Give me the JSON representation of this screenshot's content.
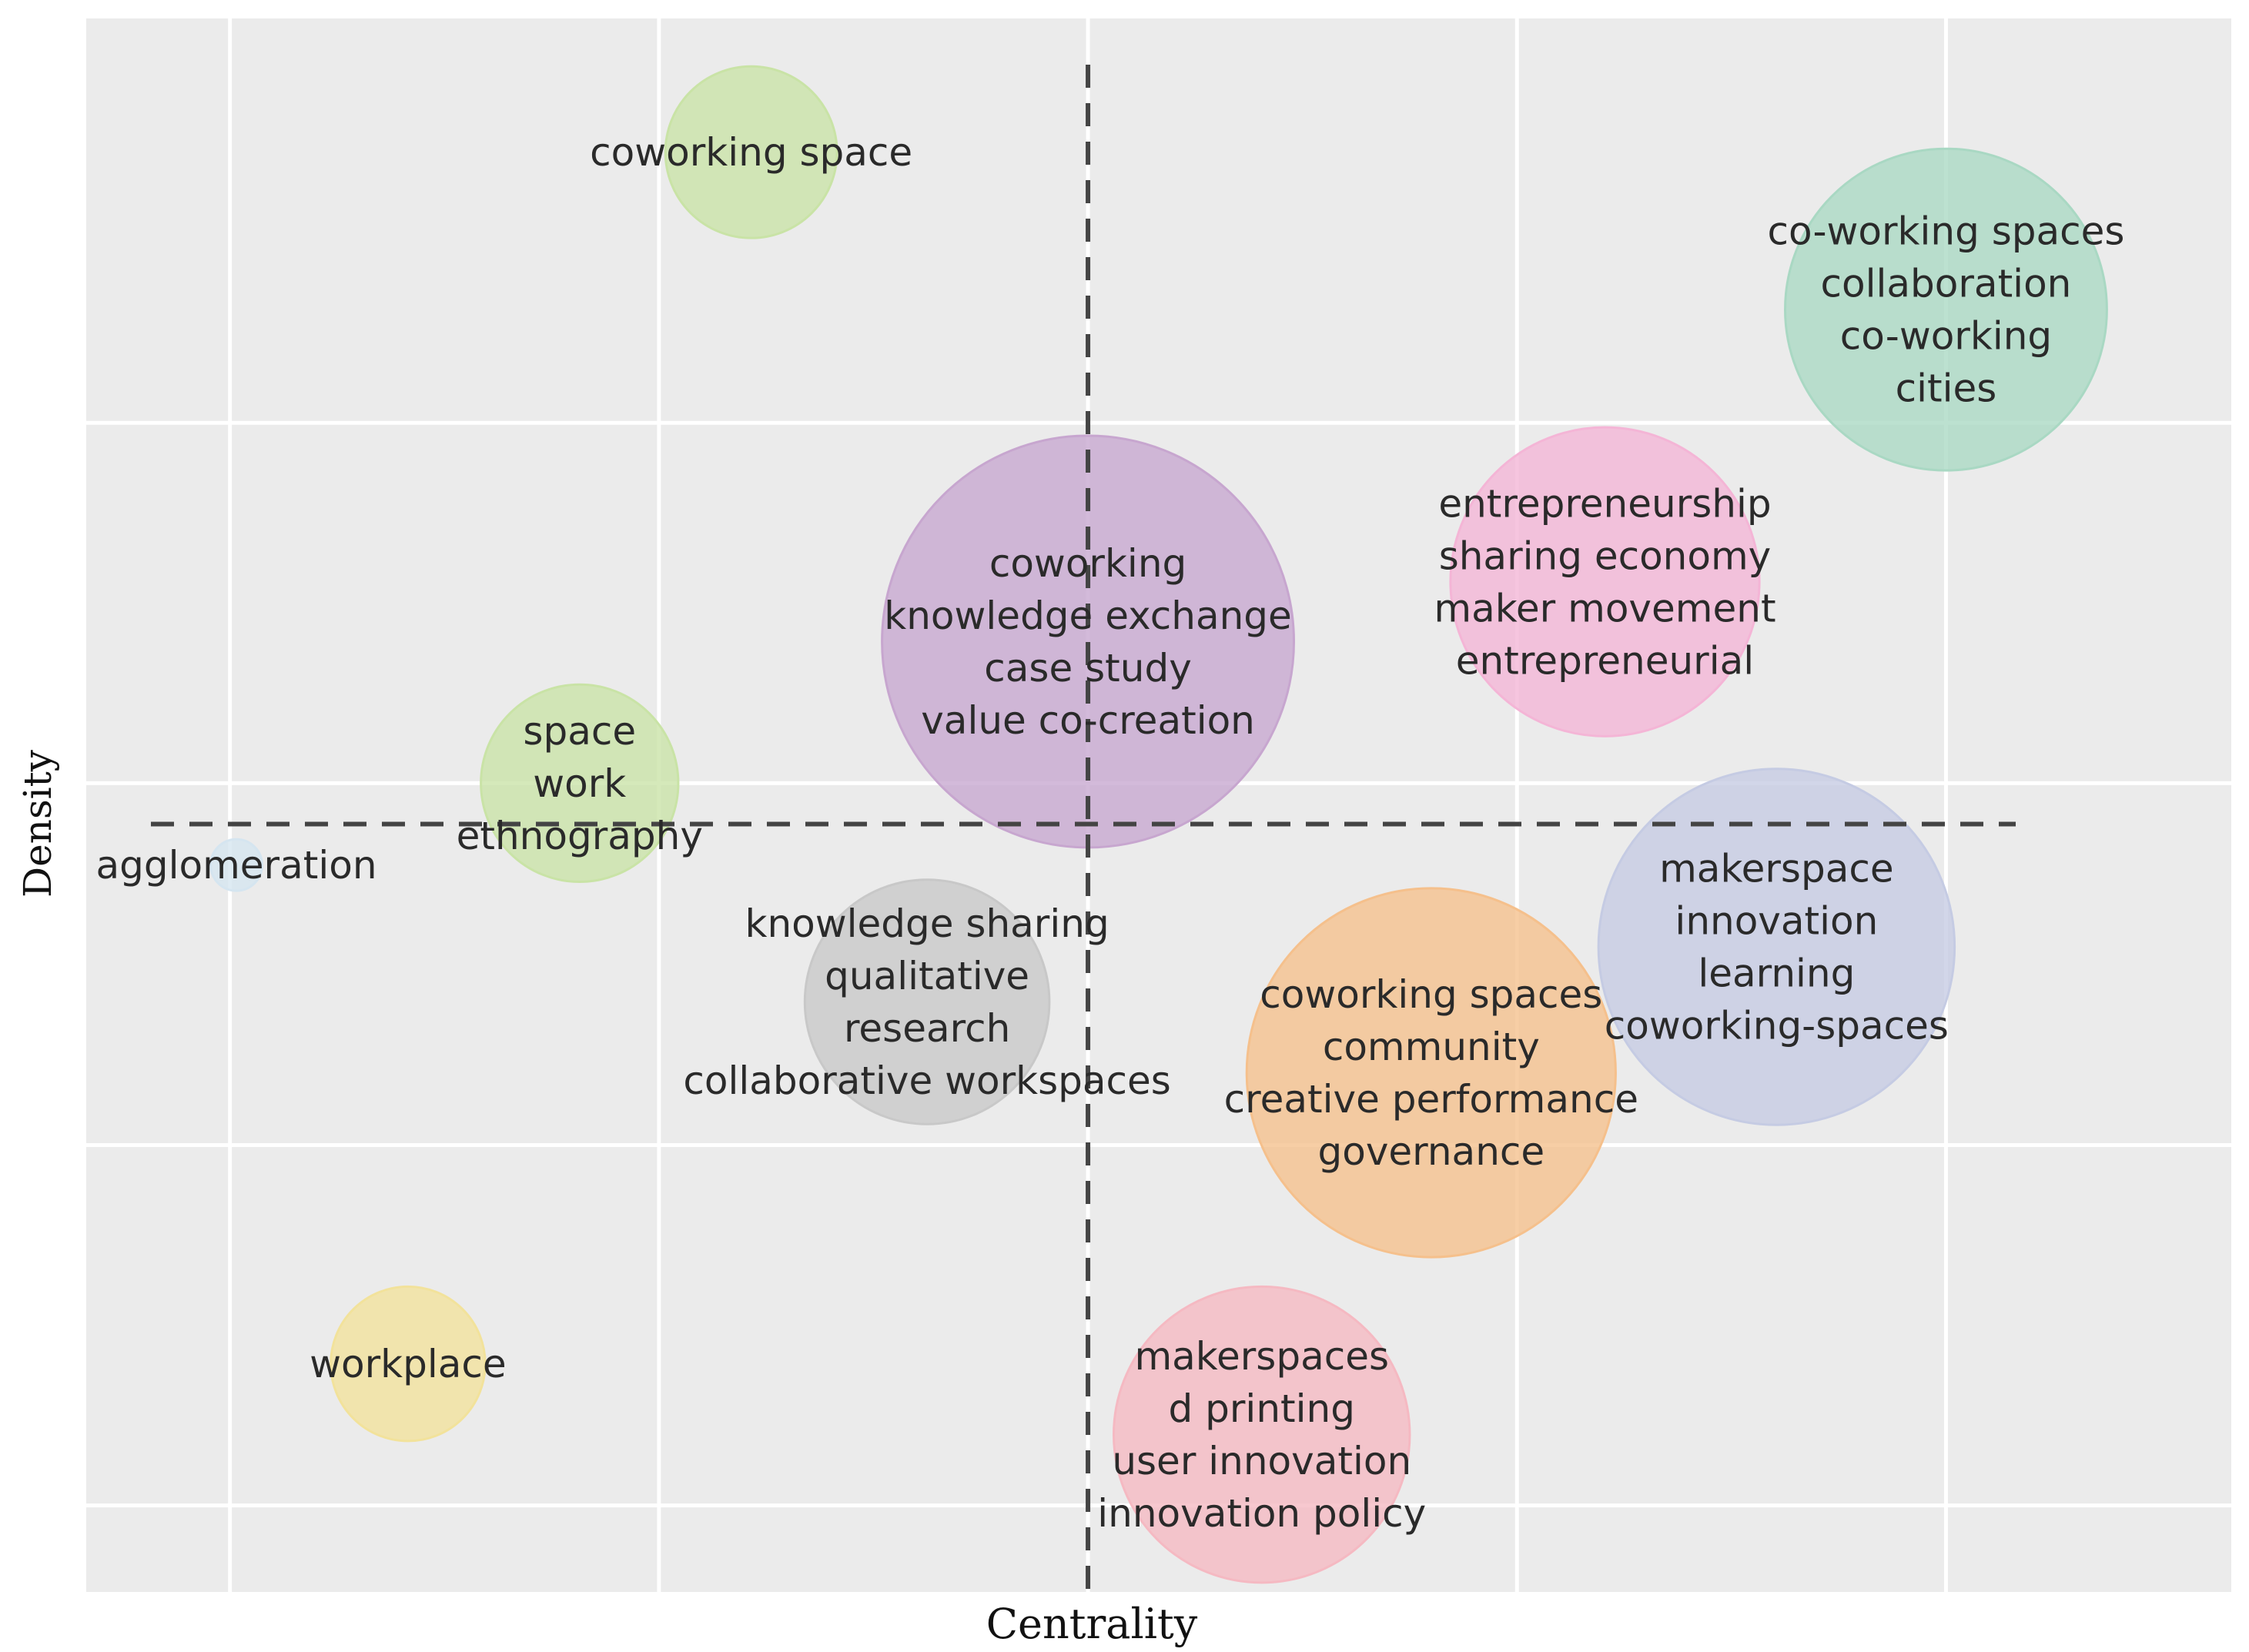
{
  "chart_data": {
    "type": "scatter",
    "subtype": "bubble",
    "title": "",
    "xlabel": "Centrality",
    "ylabel": "Density",
    "tick_labels_shown": false,
    "grid": true,
    "background": "#ebebeb",
    "grid_color": "#ffffff",
    "xlim": [
      0,
      10
    ],
    "ylim": [
      0,
      10
    ],
    "xticks": [
      0.67,
      2.67,
      4.67,
      6.67,
      8.67
    ],
    "yticks": [
      0.55,
      2.84,
      5.14,
      7.43
    ],
    "reference_lines": {
      "x": 4.67,
      "y": 4.88,
      "style": "dashed",
      "color": "#444444"
    },
    "points": [
      {
        "x": 3.1,
        "y": 9.15,
        "size": 0.4,
        "color": "#c9e3a6",
        "labels": [
          "coworking space"
        ]
      },
      {
        "x": 8.67,
        "y": 8.15,
        "size": 0.75,
        "color": "#a9d8c3",
        "labels": [
          "co-working spaces",
          "collaboration",
          "co-working",
          "cities"
        ]
      },
      {
        "x": 7.08,
        "y": 6.42,
        "size": 0.72,
        "color": "#f4b5d6",
        "labels": [
          "entrepreneurship",
          "sharing economy",
          "maker movement",
          "entrepreneurial"
        ]
      },
      {
        "x": 4.67,
        "y": 6.04,
        "size": 0.96,
        "color": "#c7a6cf",
        "labels": [
          "coworking",
          "knowledge exchange",
          "case study",
          "value co-creation"
        ]
      },
      {
        "x": 2.3,
        "y": 5.14,
        "size": 0.46,
        "color": "#c9e3a6",
        "labels": [
          "space",
          "work",
          "ethnography"
        ]
      },
      {
        "x": 0.7,
        "y": 4.62,
        "size": 0.12,
        "color": "#d5e5f0",
        "labels": [
          "agglomeration"
        ]
      },
      {
        "x": 3.92,
        "y": 3.75,
        "size": 0.57,
        "color": "#c8c8c8",
        "labels": [
          "knowledge sharing",
          "qualitative",
          "research",
          "collaborative workspaces"
        ]
      },
      {
        "x": 7.88,
        "y": 4.1,
        "size": 0.83,
        "color": "#c5cbe3",
        "labels": [
          "makerspace",
          "innovation",
          "learning",
          "coworking-spaces"
        ]
      },
      {
        "x": 6.27,
        "y": 3.3,
        "size": 0.86,
        "color": "#f5c08c",
        "labels": [
          "coworking spaces",
          "community",
          "creative performance",
          "governance"
        ]
      },
      {
        "x": 1.5,
        "y": 1.45,
        "size": 0.36,
        "color": "#f2e29b",
        "labels": [
          "workplace"
        ]
      },
      {
        "x": 5.48,
        "y": 1.0,
        "size": 0.69,
        "color": "#f5b9c2",
        "labels": [
          "makerspaces",
          "d printing",
          "user innovation",
          "innovation policy"
        ]
      }
    ]
  }
}
